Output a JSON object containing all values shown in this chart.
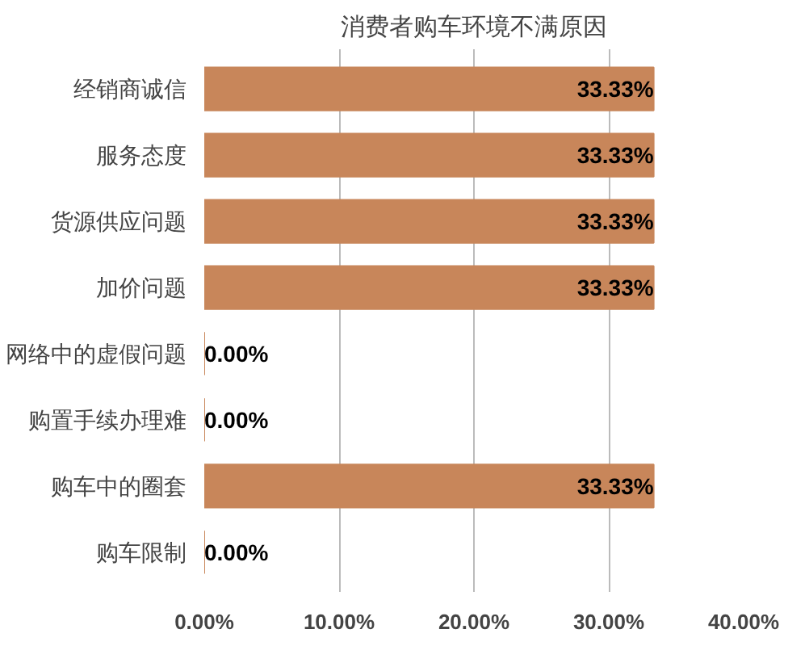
{
  "chart_data": {
    "type": "bar",
    "orientation": "horizontal",
    "title": "消费者购车环境不满原因",
    "categories": [
      "经销商诚信",
      "服务态度",
      "货源供应问题",
      "加价问题",
      "网络中的虚假问题",
      "购置手续办理难",
      "购车中的圈套",
      "购车限制"
    ],
    "values": [
      33.33,
      33.33,
      33.33,
      33.33,
      0,
      0,
      33.33,
      0
    ],
    "value_labels": [
      "33.33%",
      "33.33%",
      "33.33%",
      "33.33%",
      "0.00%",
      "0.00%",
      "33.33%",
      "0.00%"
    ],
    "color": "#c8865a",
    "xlim": [
      0,
      40
    ],
    "xticks": [
      {
        "value": 0,
        "label": "0.00%"
      },
      {
        "value": 10,
        "label": "10.00%"
      },
      {
        "value": 20,
        "label": "20.00%"
      },
      {
        "value": 30,
        "label": "30.00%"
      },
      {
        "value": 40,
        "label": "40.00%"
      }
    ],
    "grid": "x"
  }
}
